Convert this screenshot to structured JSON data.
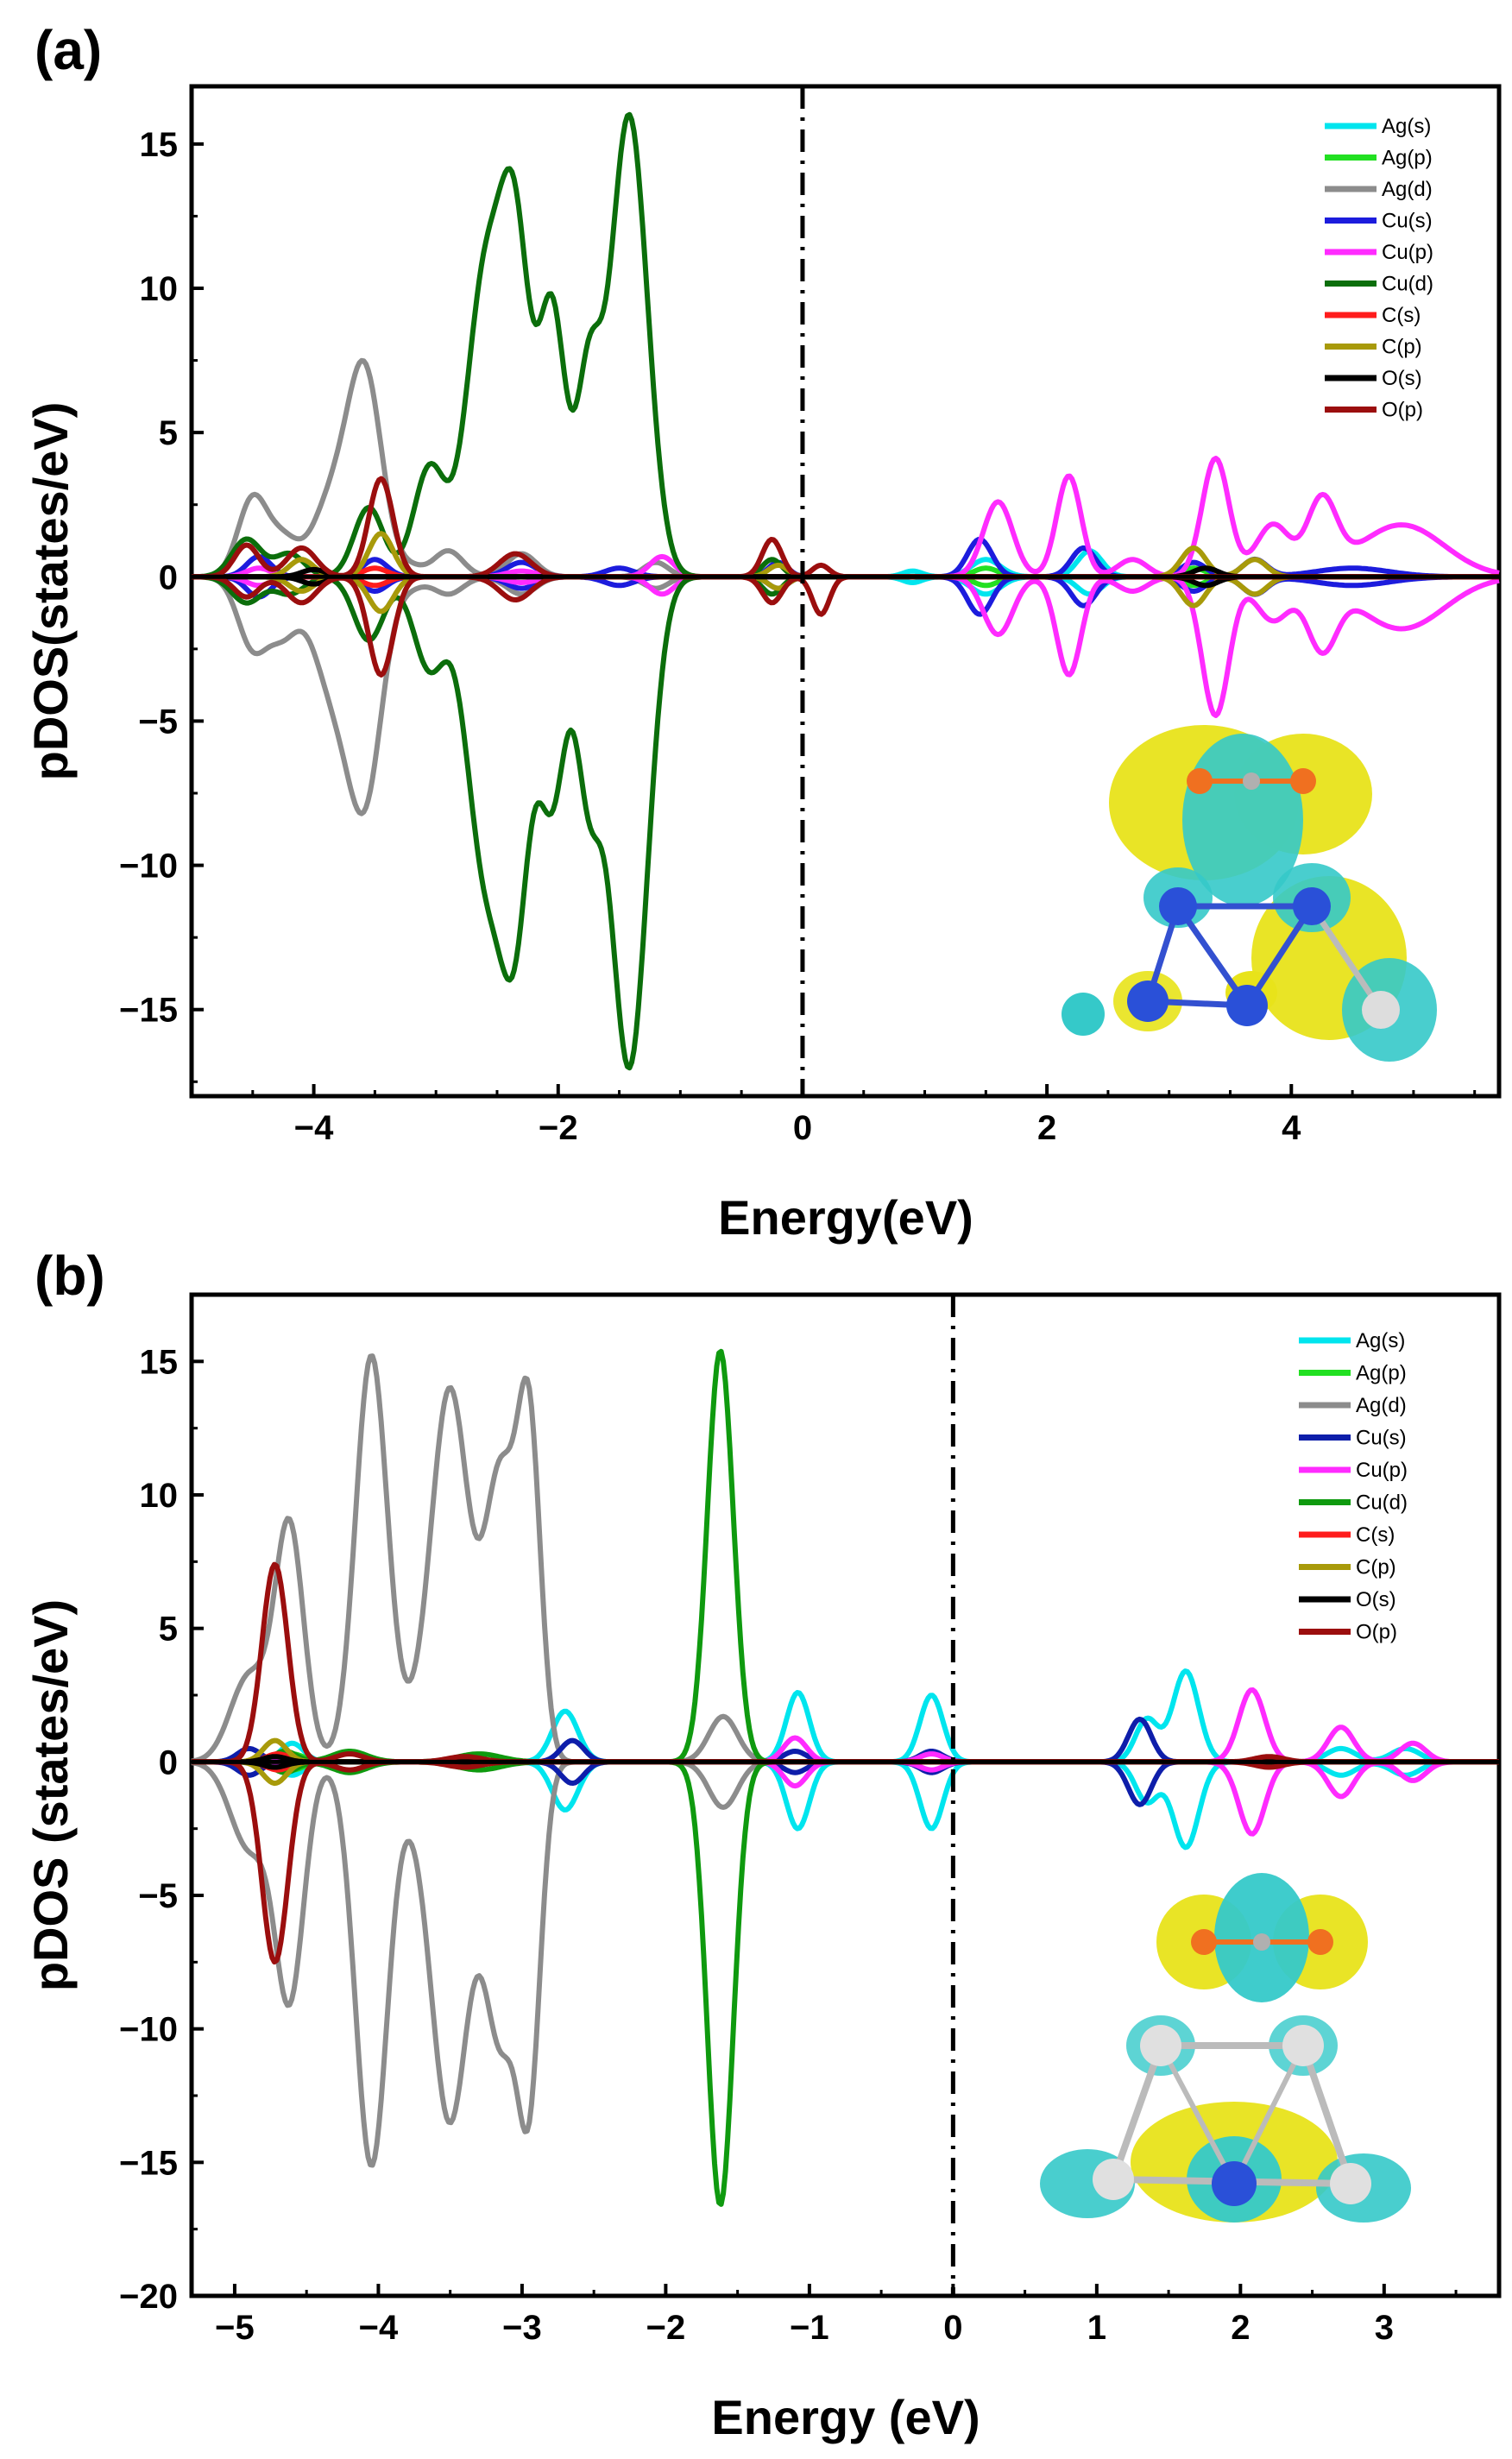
{
  "chart_data": [
    {
      "type": "line",
      "panel_label": "(a)",
      "xlabel": "Energy(eV)",
      "ylabel": "pDOS(states/eV)",
      "xlim": [
        -5.0,
        5.7
      ],
      "ylim": [
        -18.0,
        17.0
      ],
      "xticks": [
        -4,
        -2,
        0,
        2,
        4
      ],
      "xtick_labels": [
        "−4",
        "−2",
        "0",
        "2",
        "4"
      ],
      "yticks": [
        -15,
        -10,
        -5,
        0,
        5,
        10,
        15
      ],
      "ytick_labels": [
        "−15",
        "−10",
        "−5",
        "0",
        "5",
        "10",
        "15"
      ],
      "fermi_level": 0,
      "legend_position": "top-right",
      "inset": "charge-density-difference isosurface of adsorbed CO2 on Ag-Cu cluster",
      "series": [
        {
          "name": "Ag(s)",
          "color": "#00e5ee",
          "peaks": [
            [
              1.5,
              0.6,
              0.12,
              -0.6
            ],
            [
              2.35,
              0.9,
              0.1,
              -0.6
            ],
            [
              0.9,
              0.2,
              0.08,
              -0.2
            ]
          ]
        },
        {
          "name": "Ag(p)",
          "color": "#22e022",
          "peaks": [
            [
              1.5,
              0.3,
              0.1,
              -0.3
            ],
            [
              3.2,
              0.3,
              0.1,
              -0.3
            ]
          ]
        },
        {
          "name": "Ag(d)",
          "color": "#8c8c8c",
          "peaks": [
            [
              -4.5,
              2.7,
              0.12,
              -2.4
            ],
            [
              -4.25,
              1.2,
              0.12,
              -1.8
            ],
            [
              -3.85,
              2.6,
              0.16,
              -3.6
            ],
            [
              -3.58,
              6.8,
              0.14,
              -7.2
            ],
            [
              -3.2,
              0.3,
              0.1,
              -0.3
            ],
            [
              -2.9,
              0.9,
              0.12,
              -0.6
            ],
            [
              -2.3,
              0.8,
              0.12,
              -0.6
            ],
            [
              -1.2,
              0.5,
              0.1,
              -0.4
            ]
          ]
        },
        {
          "name": "Cu(s)",
          "color": "#1c1cdd",
          "peaks": [
            [
              -4.45,
              0.7,
              0.1,
              -0.7
            ],
            [
              -3.5,
              0.6,
              0.1,
              -0.5
            ],
            [
              -2.3,
              0.5,
              0.12,
              -0.4
            ],
            [
              -1.5,
              0.3,
              0.12,
              -0.3
            ],
            [
              -0.2,
              0.5,
              0.08,
              -0.4
            ],
            [
              1.45,
              1.3,
              0.1,
              -1.3
            ],
            [
              2.3,
              1.0,
              0.1,
              -1.0
            ],
            [
              3.2,
              0.5,
              0.1,
              -0.5
            ],
            [
              3.7,
              0.6,
              0.1,
              -0.6
            ],
            [
              4.5,
              0.3,
              0.3,
              -0.3
            ]
          ]
        },
        {
          "name": "Cu(p)",
          "color": "#ff2bff",
          "peaks": [
            [
              -4.45,
              0.3,
              0.1,
              -0.3
            ],
            [
              -2.3,
              0.2,
              0.12,
              -0.2
            ],
            [
              -1.15,
              0.7,
              0.1,
              -0.6
            ],
            [
              1.6,
              2.6,
              0.12,
              -2.0
            ],
            [
              2.18,
              3.5,
              0.1,
              -3.4
            ],
            [
              2.7,
              0.6,
              0.12,
              -0.5
            ],
            [
              3.38,
              4.1,
              0.11,
              -4.8
            ],
            [
              3.85,
              1.8,
              0.14,
              -1.5
            ],
            [
              4.25,
              2.5,
              0.12,
              -2.3
            ],
            [
              4.9,
              1.8,
              0.35,
              -1.8
            ]
          ]
        },
        {
          "name": "Cu(d)",
          "color": "#0b6e0b",
          "peaks": [
            [
              -4.55,
              1.3,
              0.12,
              -0.9
            ],
            [
              -4.2,
              0.8,
              0.12,
              -0.6
            ],
            [
              -3.55,
              2.4,
              0.12,
              -2.2
            ],
            [
              -3.05,
              3.8,
              0.13,
              -3.2
            ],
            [
              -2.6,
              10.2,
              0.15,
              -9.8
            ],
            [
              -2.35,
              10.8,
              0.12,
              -10.8
            ],
            [
              -2.05,
              9.2,
              0.11,
              -7.6
            ],
            [
              -1.75,
              6.6,
              0.1,
              -6.8
            ],
            [
              -1.42,
              16.0,
              0.15,
              -17.0
            ],
            [
              -0.25,
              0.6,
              0.08,
              -0.6
            ]
          ]
        },
        {
          "name": "C(s)",
          "color": "#ff1c1c",
          "peaks": [
            [
              -3.5,
              0.3,
              0.1,
              -0.3
            ]
          ]
        },
        {
          "name": "C(p)",
          "color": "#a89a0a",
          "peaks": [
            [
              -4.1,
              0.6,
              0.1,
              -0.5
            ],
            [
              -3.45,
              1.5,
              0.1,
              -1.2
            ],
            [
              3.2,
              1.0,
              0.1,
              -1.0
            ],
            [
              3.7,
              0.6,
              0.1,
              -0.6
            ],
            [
              -0.2,
              0.4,
              0.08,
              -0.4
            ]
          ]
        },
        {
          "name": "O(s)",
          "color": "#000000",
          "peaks": [
            [
              -4.0,
              0.25,
              0.1,
              -0.25
            ],
            [
              3.3,
              0.3,
              0.1,
              -0.3
            ]
          ]
        },
        {
          "name": "O(p)",
          "color": "#9b0e0e",
          "peaks": [
            [
              -4.55,
              1.1,
              0.1,
              -0.7
            ],
            [
              -4.1,
              1.0,
              0.12,
              -0.9
            ],
            [
              -3.45,
              3.4,
              0.1,
              -3.4
            ],
            [
              -2.35,
              0.8,
              0.13,
              -0.8
            ],
            [
              -0.25,
              1.3,
              0.08,
              -0.9
            ],
            [
              0.15,
              0.4,
              0.07,
              -1.3
            ]
          ]
        }
      ]
    },
    {
      "type": "line",
      "panel_label": "(b)",
      "xlabel": "Energy (eV)",
      "ylabel": "pDOS (states/eV)",
      "xlim": [
        -5.3,
        3.8
      ],
      "ylim": [
        -20.0,
        17.5
      ],
      "xticks": [
        -5,
        -4,
        -3,
        -2,
        -1,
        0,
        1,
        2,
        3
      ],
      "xtick_labels": [
        "−5",
        "−4",
        "−3",
        "−2",
        "−1",
        "0",
        "1",
        "2",
        "3"
      ],
      "yticks": [
        -20,
        -15,
        -10,
        -5,
        0,
        5,
        10,
        15
      ],
      "ytick_labels": [
        "−20",
        "−15",
        "−10",
        "−5",
        "0",
        "5",
        "10",
        "15"
      ],
      "fermi_level": 0,
      "legend_position": "top-right",
      "inset": "charge-density-difference isosurface of CO2 above Ag-Cu cluster",
      "series": [
        {
          "name": "Ag(s)",
          "color": "#00e5ee",
          "peaks": [
            [
              -4.6,
              0.7,
              0.08,
              -0.5
            ],
            [
              -2.7,
              1.9,
              0.09,
              -1.8
            ],
            [
              -1.08,
              2.6,
              0.08,
              -2.5
            ],
            [
              -0.15,
              2.5,
              0.08,
              -2.5
            ],
            [
              1.35,
              1.6,
              0.08,
              -1.5
            ],
            [
              1.62,
              3.4,
              0.09,
              -3.2
            ],
            [
              2.7,
              0.5,
              0.1,
              -0.5
            ],
            [
              3.15,
              0.5,
              0.1,
              -0.5
            ]
          ]
        },
        {
          "name": "Ag(p)",
          "color": "#22e022",
          "peaks": [
            [
              -4.6,
              0.3,
              0.08,
              -0.3
            ]
          ]
        },
        {
          "name": "Ag(d)",
          "color": "#8c8c8c",
          "peaks": [
            [
              -4.9,
              3.2,
              0.13,
              -3.2
            ],
            [
              -4.62,
              8.8,
              0.1,
              -8.8
            ],
            [
              -4.05,
              14.9,
              0.11,
              -14.8
            ],
            [
              -3.5,
              13.5,
              0.13,
              -13.0
            ],
            [
              -3.15,
              10.5,
              0.11,
              -10.0
            ],
            [
              -2.95,
              12.0,
              0.08,
              -11.6
            ],
            [
              -3.75,
              1.0,
              0.2,
              -1.0
            ],
            [
              -1.6,
              1.7,
              0.1,
              -1.7
            ]
          ]
        },
        {
          "name": "Cu(s)",
          "color": "#0e1eaa",
          "peaks": [
            [
              -4.9,
              0.5,
              0.08,
              -0.5
            ],
            [
              -2.65,
              0.8,
              0.08,
              -0.8
            ],
            [
              -1.1,
              0.4,
              0.08,
              -0.4
            ],
            [
              -0.15,
              0.4,
              0.08,
              -0.4
            ],
            [
              1.3,
              1.6,
              0.08,
              -1.6
            ]
          ]
        },
        {
          "name": "Cu(p)",
          "color": "#ff2bff",
          "peaks": [
            [
              -1.1,
              0.9,
              0.08,
              -0.9
            ],
            [
              2.08,
              2.7,
              0.09,
              -2.7
            ],
            [
              2.7,
              1.3,
              0.09,
              -1.3
            ],
            [
              3.2,
              0.7,
              0.09,
              -0.7
            ],
            [
              -0.15,
              0.3,
              0.08,
              -0.3
            ]
          ]
        },
        {
          "name": "Cu(d)",
          "color": "#0f9a0f",
          "peaks": [
            [
              -4.2,
              0.4,
              0.12,
              -0.4
            ],
            [
              -3.3,
              0.3,
              0.15,
              -0.3
            ],
            [
              -1.62,
              15.4,
              0.09,
              -16.6
            ],
            [
              -4.65,
              0.4,
              0.08,
              -0.4
            ]
          ]
        },
        {
          "name": "C(s)",
          "color": "#ff1c1c",
          "peaks": [
            [
              -4.7,
              0.3,
              0.08,
              -0.3
            ]
          ]
        },
        {
          "name": "C(p)",
          "color": "#a89a0a",
          "peaks": [
            [
              -4.72,
              0.8,
              0.08,
              -0.8
            ]
          ]
        },
        {
          "name": "O(s)",
          "color": "#000000",
          "peaks": [
            [
              -4.72,
              0.2,
              0.08,
              -0.2
            ]
          ]
        },
        {
          "name": "O(p)",
          "color": "#9b0e0e",
          "peaks": [
            [
              -4.72,
              7.4,
              0.09,
              -7.5
            ],
            [
              -4.2,
              0.3,
              0.1,
              -0.3
            ],
            [
              -3.4,
              0.2,
              0.12,
              -0.2
            ],
            [
              2.2,
              0.2,
              0.1,
              -0.2
            ]
          ]
        }
      ]
    }
  ]
}
